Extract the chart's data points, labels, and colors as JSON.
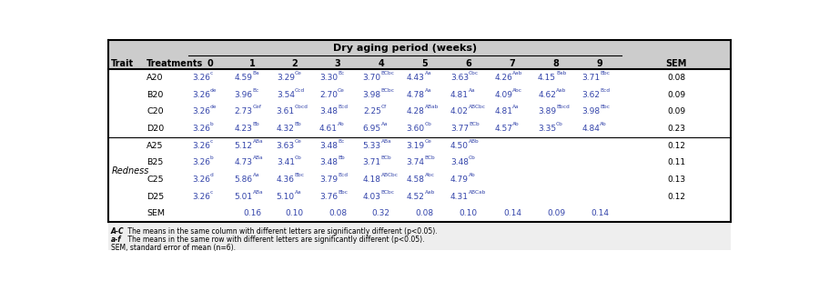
{
  "title": "Dry aging period (weeks)",
  "col_headers": [
    "Trait",
    "Treatments",
    "0",
    "1",
    "2",
    "3",
    "4",
    "5",
    "6",
    "7",
    "8",
    "9",
    "SEM"
  ],
  "rows": [
    [
      "",
      "A20",
      "3.26",
      "c",
      "4.59",
      "Ba",
      "3.29",
      "Ce",
      "3.30",
      "Bc",
      "3.70",
      "BCbc",
      "4.43",
      "Aa",
      "3.63",
      "Cbc",
      "4.26",
      "Aab",
      "4.15",
      "Bab",
      "3.71",
      "Bbc",
      "0.08"
    ],
    [
      "",
      "B20",
      "3.26",
      "de",
      "3.96",
      "Bc",
      "3.54",
      "Ccd",
      "2.70",
      "Ce",
      "3.98",
      "BCbc",
      "4.78",
      "Aa",
      "4.81",
      "Aa",
      "4.09",
      "Abc",
      "4.62",
      "Aab",
      "3.62",
      "Bcd",
      "0.09"
    ],
    [
      "",
      "C20",
      "3.26",
      "de",
      "2.73",
      "Cef",
      "3.61",
      "Cbcd",
      "3.48",
      "Bcd",
      "2.25",
      "Cf",
      "4.28",
      "ABab",
      "4.02",
      "ABCbc",
      "4.81",
      "Aa",
      "3.89",
      "Bbcd",
      "3.98",
      "Bbc",
      "0.09"
    ],
    [
      "",
      "D20",
      "3.26",
      "b",
      "4.23",
      "Bb",
      "4.32",
      "Bb",
      "4.61",
      "Ab",
      "6.95",
      "Aa",
      "3.60",
      "Cb",
      "3.77",
      "BCb",
      "4.57",
      "Ab",
      "3.35",
      "Cb",
      "4.84",
      "Ab",
      "0.23"
    ],
    [
      "Redness",
      "A25",
      "3.26",
      "c",
      "5.12",
      "ABa",
      "3.63",
      "Ce",
      "3.48",
      "Bc",
      "5.33",
      "ABa",
      "3.19",
      "Ce",
      "4.50",
      "ABb",
      "",
      "",
      "",
      "",
      "",
      "",
      "0.12"
    ],
    [
      "",
      "B25",
      "3.26",
      "b",
      "4.73",
      "ABa",
      "3.41",
      "Cb",
      "3.48",
      "Bb",
      "3.71",
      "BCb",
      "3.74",
      "BCb",
      "3.48",
      "Cb",
      "",
      "",
      "",
      "",
      "",
      "",
      "0.11"
    ],
    [
      "",
      "C25",
      "3.26",
      "d",
      "5.86",
      "Aa",
      "4.36",
      "Bbc",
      "3.79",
      "Bcd",
      "4.18",
      "ABCbc",
      "4.58",
      "Abc",
      "4.79",
      "Ab",
      "",
      "",
      "",
      "",
      "",
      "",
      "0.13"
    ],
    [
      "",
      "D25",
      "3.26",
      "c",
      "5.01",
      "ABa",
      "5.10",
      "Aa",
      "3.76",
      "Bbc",
      "4.03",
      "BCbc",
      "4.52",
      "Aab",
      "4.31",
      "ABCab",
      "",
      "",
      "",
      "",
      "",
      "",
      "0.12"
    ],
    [
      "",
      "SEM",
      "",
      "",
      "0.16",
      "",
      "0.10",
      "",
      "0.08",
      "",
      "0.32",
      "",
      "0.08",
      "",
      "0.10",
      "",
      "0.14",
      "",
      "0.09",
      "",
      "0.14",
      "",
      ""
    ]
  ],
  "footnotes": [
    "A-C The means in the same column with different letters are significantly different (p<0.05).",
    "a-f The means in the same row with different letters are significantly different (p<0.05).",
    "SEM, standard error of mean (n=6)."
  ],
  "text_color": "#3344aa",
  "bg_color": "#ffffff",
  "header_bg": "#cccccc"
}
